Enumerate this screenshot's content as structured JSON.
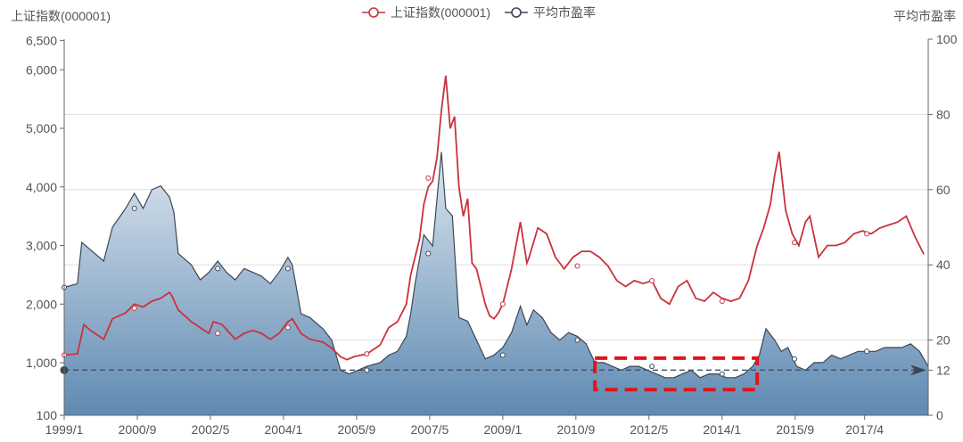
{
  "chart_data": {
    "type": "line",
    "title": "",
    "y_left_label": "上证指数(000001)",
    "y_right_label": "平均市盈率",
    "legend": {
      "position": "top-center",
      "items": [
        {
          "label": "上证指数(000001)",
          "color": "#c8333b"
        },
        {
          "label": "平均市盈率",
          "color": "#3d4654"
        }
      ]
    },
    "y_left_ticks": [
      100,
      1000,
      2000,
      3000,
      4000,
      5000,
      6000,
      6500
    ],
    "y_left_tick_labels": [
      "100",
      "1,000",
      "2,000",
      "3,000",
      "4,000",
      "5,000",
      "6,000",
      "6,500"
    ],
    "y_left_range": [
      100,
      6500
    ],
    "y_right_ticks": [
      0,
      12,
      20,
      40,
      60,
      80,
      100
    ],
    "y_right_range": [
      0,
      100
    ],
    "x_ticks": [
      "1999/1",
      "2000/9",
      "2002/5",
      "2004/1",
      "2005/9",
      "2007/5",
      "2009/1",
      "2010/9",
      "2012/5",
      "2014/1",
      "2015/9",
      "2017/4"
    ],
    "x_range": [
      1999.0,
      2018.7
    ],
    "reference_line": {
      "axis": "right",
      "value": 12,
      "style": "dashed",
      "color": "#3d5068"
    },
    "highlight_box": {
      "x": [
        2011.1,
        2014.8
      ],
      "y_right": [
        6.8,
        15.2
      ],
      "color": "#e0141b"
    },
    "series": [
      {
        "name": "上证指数(000001)",
        "axis": "left",
        "color": "#c8333b",
        "x": [
          1999.0,
          1999.3,
          1999.45,
          1999.6,
          1999.9,
          2000.1,
          2000.4,
          2000.6,
          2000.8,
          2001.0,
          2001.2,
          2001.4,
          2001.45,
          2001.6,
          2001.9,
          2002.1,
          2002.3,
          2002.4,
          2002.6,
          2002.9,
          2003.1,
          2003.3,
          2003.5,
          2003.7,
          2003.9,
          2004.1,
          2004.2,
          2004.4,
          2004.6,
          2004.9,
          2005.1,
          2005.3,
          2005.45,
          2005.6,
          2005.9,
          2006.2,
          2006.4,
          2006.6,
          2006.8,
          2006.9,
          2007.0,
          2007.1,
          2007.2,
          2007.3,
          2007.4,
          2007.5,
          2007.6,
          2007.7,
          2007.8,
          2007.9,
          2008.0,
          2008.1,
          2008.2,
          2008.3,
          2008.4,
          2008.5,
          2008.6,
          2008.7,
          2008.8,
          2008.9,
          2009.0,
          2009.2,
          2009.4,
          2009.55,
          2009.6,
          2009.8,
          2010.0,
          2010.2,
          2010.4,
          2010.6,
          2010.8,
          2011.0,
          2011.2,
          2011.4,
          2011.6,
          2011.8,
          2012.0,
          2012.2,
          2012.4,
          2012.6,
          2012.8,
          2013.0,
          2013.2,
          2013.4,
          2013.6,
          2013.8,
          2014.0,
          2014.2,
          2014.4,
          2014.6,
          2014.8,
          2014.95,
          2015.1,
          2015.2,
          2015.3,
          2015.45,
          2015.6,
          2015.75,
          2015.9,
          2016.0,
          2016.2,
          2016.4,
          2016.6,
          2016.8,
          2017.0,
          2017.2,
          2017.4,
          2017.6,
          2017.8,
          2018.0,
          2018.2,
          2018.4,
          2018.6
        ],
        "values": [
          1130,
          1150,
          1650,
          1550,
          1400,
          1750,
          1850,
          2000,
          1950,
          2050,
          2100,
          2200,
          2150,
          1900,
          1700,
          1600,
          1500,
          1700,
          1650,
          1400,
          1500,
          1550,
          1500,
          1400,
          1500,
          1700,
          1750,
          1500,
          1400,
          1350,
          1250,
          1100,
          1050,
          1100,
          1150,
          1300,
          1600,
          1700,
          2000,
          2500,
          2800,
          3100,
          3700,
          4000,
          4100,
          4500,
          5300,
          5900,
          5000,
          5200,
          4000,
          3500,
          3800,
          2700,
          2600,
          2300,
          2000,
          1800,
          1750,
          1850,
          2000,
          2600,
          3400,
          2700,
          2800,
          3300,
          3200,
          2800,
          2600,
          2800,
          2900,
          2900,
          2800,
          2650,
          2400,
          2300,
          2400,
          2350,
          2400,
          2100,
          2000,
          2300,
          2400,
          2100,
          2050,
          2200,
          2100,
          2050,
          2100,
          2400,
          3000,
          3300,
          3700,
          4200,
          4600,
          3600,
          3200,
          3000,
          3400,
          3500,
          2800,
          3000,
          3000,
          3050,
          3200,
          3250,
          3200,
          3300,
          3350,
          3400,
          3500,
          3150,
          2850
        ]
      },
      {
        "name": "平均市盈率",
        "axis": "right",
        "color": "#3d4654",
        "x": [
          1999.0,
          1999.3,
          1999.4,
          1999.6,
          1999.9,
          2000.1,
          2000.4,
          2000.6,
          2000.8,
          2001.0,
          2001.2,
          2001.4,
          2001.5,
          2001.6,
          2001.9,
          2002.1,
          2002.3,
          2002.5,
          2002.7,
          2002.9,
          2003.1,
          2003.3,
          2003.5,
          2003.7,
          2003.9,
          2004.1,
          2004.2,
          2004.4,
          2004.6,
          2004.9,
          2005.1,
          2005.3,
          2005.5,
          2005.7,
          2005.9,
          2006.2,
          2006.4,
          2006.6,
          2006.8,
          2006.9,
          2007.0,
          2007.2,
          2007.4,
          2007.6,
          2007.7,
          2007.85,
          2008.0,
          2008.2,
          2008.4,
          2008.6,
          2008.8,
          2009.0,
          2009.2,
          2009.4,
          2009.55,
          2009.7,
          2009.9,
          2010.1,
          2010.3,
          2010.5,
          2010.7,
          2010.9,
          2011.1,
          2011.3,
          2011.5,
          2011.7,
          2011.9,
          2012.1,
          2012.3,
          2012.5,
          2012.7,
          2012.9,
          2013.1,
          2013.3,
          2013.5,
          2013.7,
          2013.9,
          2014.1,
          2014.3,
          2014.5,
          2014.7,
          2014.85,
          2015.0,
          2015.2,
          2015.35,
          2015.5,
          2015.7,
          2015.9,
          2016.1,
          2016.3,
          2016.5,
          2016.7,
          2016.9,
          2017.1,
          2017.3,
          2017.5,
          2017.7,
          2017.9,
          2018.1,
          2018.3,
          2018.5,
          2018.7
        ],
        "values": [
          34,
          35,
          46,
          44,
          41,
          50,
          55,
          59,
          55,
          60,
          61,
          58,
          54,
          43,
          40,
          36,
          38,
          41,
          38,
          36,
          39,
          38,
          37,
          35,
          38,
          42,
          40,
          27,
          26,
          23,
          20,
          12,
          11,
          12,
          13,
          14,
          16,
          17,
          21,
          27,
          35,
          48,
          45,
          70,
          55,
          53,
          26,
          25,
          20,
          15,
          16,
          18,
          22,
          29,
          24,
          28,
          26,
          22,
          20,
          22,
          21,
          19,
          14,
          14,
          13,
          12,
          13,
          13,
          12,
          11,
          10,
          10,
          11,
          12,
          10,
          11,
          11,
          10,
          10,
          11,
          13,
          16,
          23,
          20,
          17,
          18,
          13,
          12,
          14,
          14,
          16,
          15,
          16,
          17,
          17,
          17,
          18,
          18,
          18,
          19,
          17,
          13
        ]
      }
    ],
    "markers": {
      "index": [
        {
          "x": 1999.0,
          "v": 1130
        },
        {
          "x": 2000.6,
          "v": 1930
        },
        {
          "x": 2002.5,
          "v": 1500
        },
        {
          "x": 2004.1,
          "v": 1600
        },
        {
          "x": 2005.9,
          "v": 1150
        },
        {
          "x": 2007.3,
          "v": 4150
        },
        {
          "x": 2009.0,
          "v": 2000
        },
        {
          "x": 2010.7,
          "v": 2650
        },
        {
          "x": 2012.4,
          "v": 2400
        },
        {
          "x": 2014.0,
          "v": 2050
        },
        {
          "x": 2015.65,
          "v": 3050
        },
        {
          "x": 2017.3,
          "v": 3200
        }
      ],
      "pe": [
        {
          "x": 1999.0,
          "v": 34
        },
        {
          "x": 2000.6,
          "v": 55
        },
        {
          "x": 2002.5,
          "v": 39
        },
        {
          "x": 2004.1,
          "v": 39
        },
        {
          "x": 2005.9,
          "v": 12
        },
        {
          "x": 2007.3,
          "v": 43
        },
        {
          "x": 2009.0,
          "v": 16
        },
        {
          "x": 2010.7,
          "v": 20
        },
        {
          "x": 2012.4,
          "v": 13
        },
        {
          "x": 2014.0,
          "v": 11
        },
        {
          "x": 2015.65,
          "v": 15
        },
        {
          "x": 2017.3,
          "v": 17
        }
      ]
    }
  }
}
